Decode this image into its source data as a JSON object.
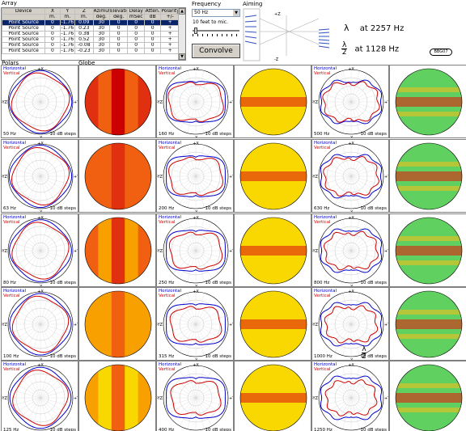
{
  "array": {
    "label": "Array",
    "headers": [
      "Device",
      "X",
      "Y",
      "Z",
      "Azimuth",
      "Elevation",
      "Delay",
      "Atten.",
      "Polarity"
    ],
    "units": [
      "",
      "m.",
      "m.",
      "m.",
      "deg.",
      "deg.",
      "mSec",
      "dB",
      "+/-"
    ],
    "rows": [
      [
        "Point Source",
        "0",
        "-1.76",
        "0.09",
        "30",
        "0",
        "0",
        "0",
        "+"
      ],
      [
        "Point Source",
        "0",
        "-1.76",
        "0.23",
        "30",
        "0",
        "0",
        "0",
        "+"
      ],
      [
        "Point Source",
        "0",
        "-1.76",
        "0.38",
        "30",
        "0",
        "0",
        "0",
        "+"
      ],
      [
        "Point Source",
        "0",
        "-1.76",
        "0.52",
        "30",
        "0",
        "0",
        "0",
        "+"
      ],
      [
        "Point Source",
        "0",
        "-1.76",
        "-0.08",
        "30",
        "0",
        "0",
        "0",
        "+"
      ],
      [
        "Point Source",
        "0",
        "-1.76",
        "-0.23",
        "30",
        "0",
        "0",
        "0",
        "+"
      ]
    ]
  },
  "frequency": {
    "label": "Frequency",
    "value": "50 Hz"
  },
  "distance": {
    "label": "10 feet to mic."
  },
  "convolve": {
    "label": "Convolve"
  },
  "aiming": {
    "label": "Aiming",
    "axis_top": "+Z",
    "axis_bottom": "-Z"
  },
  "wavelength": {
    "lambda_symbol": "λ",
    "lambda_text": "at 2257 Hz",
    "frac_top": "λ",
    "frac_bottom": "2",
    "half_text": "at 1128 Hz"
  },
  "badge": "BBG07",
  "sections": {
    "polars": "Polars",
    "globe": "Globe"
  },
  "legend": {
    "horizontal": "Horizontal",
    "vertical": "Vertical",
    "steps": "10 dB steps",
    "top": "+X",
    "bottom": "-X",
    "left": "-YZ",
    "right": "+YZ"
  },
  "half_symbol": {
    "top": "λ",
    "bottom": "2"
  },
  "colors": {
    "horizontal": "#0000cc",
    "vertical": "#cc0000",
    "selected_row": "#0a246a",
    "button_face": "#d4d0c8"
  },
  "plots": [
    {
      "freq": "50 Hz",
      "kind": "low"
    },
    {
      "freq": "63 Hz",
      "kind": "low"
    },
    {
      "freq": "80 Hz",
      "kind": "low"
    },
    {
      "freq": "100 Hz",
      "kind": "low"
    },
    {
      "freq": "125 Hz",
      "kind": "low"
    },
    {
      "freq": "160 Hz",
      "kind": "mid"
    },
    {
      "freq": "200 Hz",
      "kind": "mid"
    },
    {
      "freq": "250 Hz",
      "kind": "mid"
    },
    {
      "freq": "315 Hz",
      "kind": "mid"
    },
    {
      "freq": "400 Hz",
      "kind": "mid"
    },
    {
      "freq": "500 Hz",
      "kind": "high"
    },
    {
      "freq": "630 Hz",
      "kind": "high"
    },
    {
      "freq": "800 Hz",
      "kind": "high"
    },
    {
      "freq": "1000 Hz",
      "kind": "high"
    },
    {
      "freq": "1250 Hz",
      "kind": "high"
    }
  ]
}
